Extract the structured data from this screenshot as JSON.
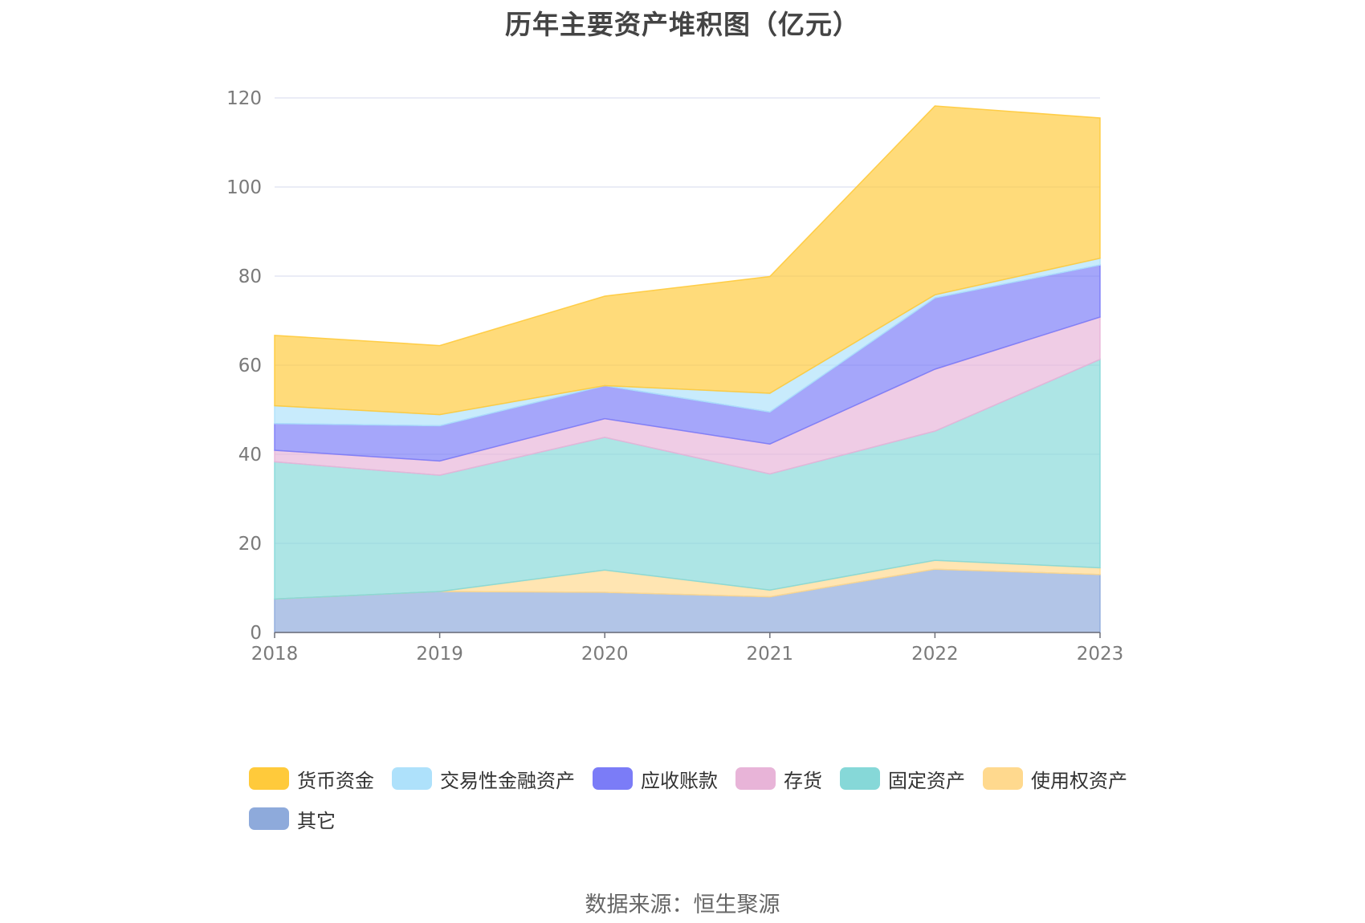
{
  "chart_data": {
    "type": "area",
    "stacked": true,
    "title": "历年主要资产堆积图（亿元）",
    "x": [
      "2018",
      "2019",
      "2020",
      "2021",
      "2022",
      "2023"
    ],
    "ylim": [
      0,
      120
    ],
    "yticks": [
      0,
      20,
      40,
      60,
      80,
      100,
      120
    ],
    "grid": true,
    "legend_position": "bottom",
    "series": [
      {
        "name": "其它",
        "color": "#8eaadb",
        "values": [
          7.5,
          9.2,
          9.0,
          8.0,
          14.2,
          13.0
        ]
      },
      {
        "name": "使用权资产",
        "color": "#ffd98e",
        "values": [
          0,
          0,
          5.0,
          1.5,
          2.0,
          1.5
        ]
      },
      {
        "name": "固定资产",
        "color": "#86d8d8",
        "values": [
          30.8,
          26.1,
          29.8,
          26.1,
          29.0,
          46.8
        ]
      },
      {
        "name": "存货",
        "color": "#e8b4d8",
        "values": [
          2.6,
          3.2,
          4.2,
          6.7,
          13.9,
          9.5
        ]
      },
      {
        "name": "应收账款",
        "color": "#7b7cf7",
        "values": [
          6.0,
          7.9,
          7.4,
          7.2,
          16.0,
          11.7
        ]
      },
      {
        "name": "交易性金融资产",
        "color": "#aee1fb",
        "values": [
          4.0,
          2.5,
          0,
          4.2,
          0.7,
          1.5
        ]
      },
      {
        "name": "货币资金",
        "color": "#ffca3b",
        "values": [
          15.8,
          15.5,
          20.1,
          26.2,
          42.4,
          31.5
        ]
      }
    ]
  },
  "legend_order": [
    "货币资金",
    "交易性金融资产",
    "应收账款",
    "存货",
    "固定资产",
    "使用权资产",
    "其它"
  ],
  "source": "数据来源：恒生聚源"
}
